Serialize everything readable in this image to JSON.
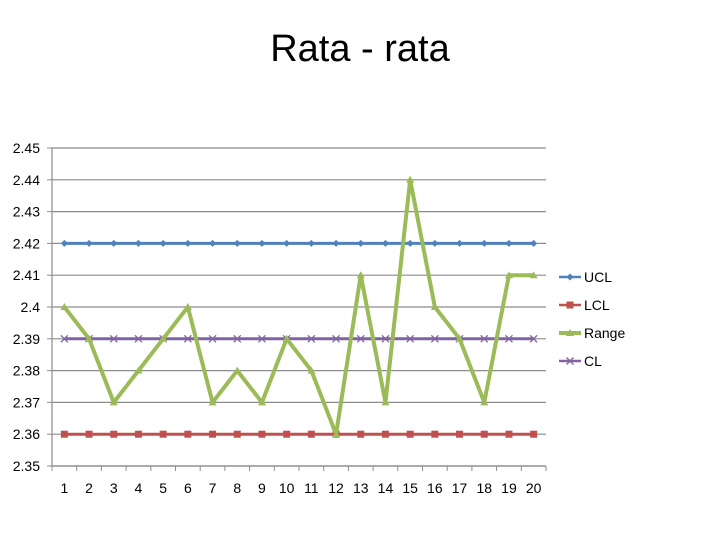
{
  "chart_data": {
    "type": "line",
    "title": "Rata - rata",
    "xlabel": "",
    "ylabel": "",
    "categories": [
      "1",
      "2",
      "3",
      "4",
      "5",
      "6",
      "7",
      "8",
      "9",
      "10",
      "11",
      "12",
      "13",
      "14",
      "15",
      "16",
      "17",
      "18",
      "19",
      "20"
    ],
    "ylim": [
      2.35,
      2.45
    ],
    "yticks": [
      "2.45",
      "2.44",
      "2.43",
      "2.42",
      "2.41",
      "2.4",
      "2.39",
      "2.38",
      "2.37",
      "2.36",
      "2.35"
    ],
    "grid": true,
    "legend": "right",
    "series": [
      {
        "name": "UCL",
        "color": "#4f81bd",
        "marker": "diamond",
        "values": [
          2.42,
          2.42,
          2.42,
          2.42,
          2.42,
          2.42,
          2.42,
          2.42,
          2.42,
          2.42,
          2.42,
          2.42,
          2.42,
          2.42,
          2.42,
          2.42,
          2.42,
          2.42,
          2.42,
          2.42
        ]
      },
      {
        "name": "LCL",
        "color": "#c0504d",
        "marker": "square",
        "values": [
          2.36,
          2.36,
          2.36,
          2.36,
          2.36,
          2.36,
          2.36,
          2.36,
          2.36,
          2.36,
          2.36,
          2.36,
          2.36,
          2.36,
          2.36,
          2.36,
          2.36,
          2.36,
          2.36,
          2.36
        ]
      },
      {
        "name": "Range",
        "color": "#9bbb59",
        "marker": "triangle",
        "values": [
          2.4,
          2.39,
          2.37,
          2.38,
          2.39,
          2.4,
          2.37,
          2.38,
          2.37,
          2.39,
          2.38,
          2.36,
          2.41,
          2.37,
          2.44,
          2.4,
          2.39,
          2.37,
          2.41,
          2.41
        ]
      },
      {
        "name": "CL",
        "color": "#8064a2",
        "marker": "x",
        "values": [
          2.39,
          2.39,
          2.39,
          2.39,
          2.39,
          2.39,
          2.39,
          2.39,
          2.39,
          2.39,
          2.39,
          2.39,
          2.39,
          2.39,
          2.39,
          2.39,
          2.39,
          2.39,
          2.39,
          2.39
        ]
      }
    ]
  }
}
